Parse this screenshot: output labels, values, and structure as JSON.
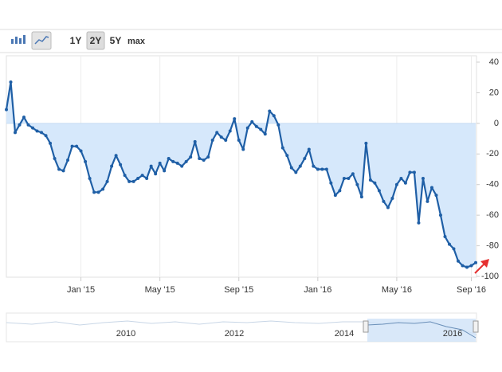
{
  "toolbar": {
    "buttons": [
      "1Y",
      "2Y",
      "5Y",
      "max"
    ]
  },
  "chart_data": {
    "type": "area",
    "categories": [
      null,
      null,
      null,
      null,
      null,
      null,
      null,
      null,
      null,
      null,
      null,
      null,
      null,
      null,
      null,
      null,
      null,
      "Jan '15",
      null,
      null,
      null,
      null,
      null,
      null,
      null,
      null,
      null,
      null,
      null,
      null,
      null,
      null,
      null,
      null,
      null,
      "May '15",
      null,
      null,
      null,
      null,
      null,
      null,
      null,
      null,
      null,
      null,
      null,
      null,
      null,
      null,
      null,
      null,
      null,
      "Sep '15",
      null,
      null,
      null,
      null,
      null,
      null,
      null,
      null,
      null,
      null,
      null,
      null,
      null,
      null,
      null,
      null,
      null,
      "Jan '16",
      null,
      null,
      null,
      null,
      null,
      null,
      null,
      null,
      null,
      null,
      null,
      null,
      null,
      null,
      null,
      null,
      null,
      "May '16",
      null,
      null,
      null,
      null,
      null,
      null,
      null,
      null,
      null,
      null,
      null,
      null,
      null,
      null,
      null,
      null,
      "Sep '16",
      null
    ],
    "values": [
      9,
      27,
      -6,
      -1,
      4,
      -1,
      -3,
      -5,
      -6,
      -8,
      -13,
      -23,
      -30,
      -31,
      -24,
      -15,
      -15,
      -18,
      -25,
      -36,
      -45,
      -45,
      -43,
      -38,
      -28,
      -21,
      -27,
      -34,
      -38,
      -38,
      -36,
      -34,
      -36,
      -28,
      -33,
      -26,
      -31,
      -23,
      -25,
      -26,
      -28,
      -25,
      -22,
      -12,
      -23,
      -24,
      -22,
      -11,
      -6,
      -9,
      -11,
      -5,
      3,
      -11,
      -17,
      -3,
      1,
      -2,
      -4,
      -7,
      8,
      5,
      -1,
      -16,
      -21,
      -29,
      -32,
      -28,
      -23,
      -17,
      -28,
      -30,
      -30,
      -30,
      -39,
      -47,
      -44,
      -36,
      -36,
      -33,
      -40,
      -48,
      -13,
      -37,
      -39,
      -44,
      -51,
      -55,
      -49,
      -40,
      -36,
      -39,
      -32,
      -32,
      -65,
      -36,
      -51,
      -42,
      -47,
      -60,
      -74,
      -79,
      -82,
      -90,
      -93,
      -94,
      -93,
      -91
    ],
    "color": "#1f5fa6",
    "area_color": "#d6e8fb",
    "ylim": [
      -100,
      40
    ],
    "yticks": [
      40,
      20,
      0,
      -20,
      -40,
      -60,
      -80,
      -100
    ]
  },
  "navigator": {
    "labels": [
      "2010",
      "2012",
      "2014",
      "2016"
    ]
  }
}
